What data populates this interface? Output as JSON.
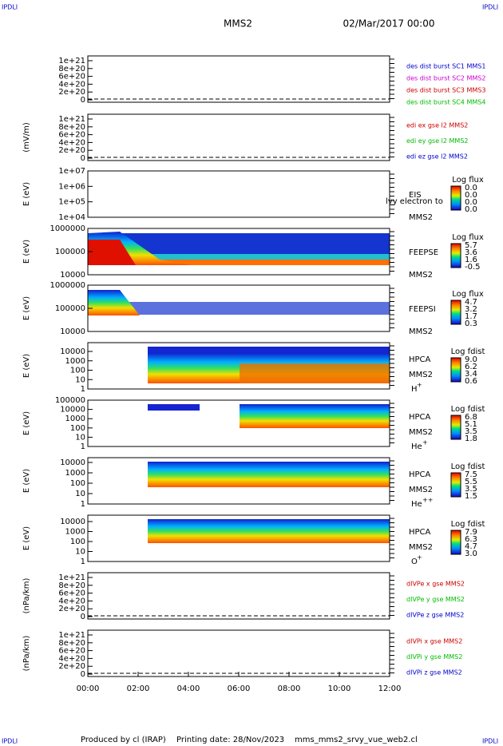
{
  "header": {
    "corner_left": "IPDLI",
    "corner_right": "IPDLI",
    "title": "MMS2",
    "date": "02/Mar/2017 00:00"
  },
  "footer": {
    "corner_left": "IPDLI",
    "corner_right": "IPDLI",
    "credit": "Produced by cl (IRAP)",
    "printing_date": "Printing date: 28/Nov/2023",
    "file": "mms_mms2_srvy_vue_web2.cl"
  },
  "x_axis": {
    "ticks": [
      "00:00",
      "02:00",
      "04:00",
      "06:00",
      "08:00",
      "10:00",
      "12:00"
    ]
  },
  "panels": [
    {
      "yticks": [
        "1e+21",
        "8e+20",
        "6e+20",
        "4e+20",
        "2e+20",
        "0"
      ],
      "legend": [
        {
          "text": "des dist burst SC1 MMS1",
          "color": "#0000cc"
        },
        {
          "text": "des dist burst SC2 MMS2",
          "color": "#cc00cc"
        },
        {
          "text": "des dist burst SC3 MMS3",
          "color": "#cc0000"
        },
        {
          "text": "des dist burst SC4 MMS4",
          "color": "#00bb00"
        }
      ]
    },
    {
      "ylabel": "(mV/m)",
      "yticks": [
        "1e+21",
        "8e+20",
        "6e+20",
        "4e+20",
        "2e+20",
        "0"
      ],
      "legend": [
        {
          "text": "edi ex gse l2 MMS2",
          "color": "#cc0000"
        },
        {
          "text": "edi ey gse l2 MMS2",
          "color": "#00bb00"
        },
        {
          "text": "edi ez gse l2 MMS2",
          "color": "#0000cc"
        }
      ]
    },
    {
      "ylabel": "E (eV)",
      "yticks": [
        "1e+07",
        "1e+06",
        "1e+05",
        "1e+04"
      ],
      "instrument": "EIS",
      "overlay": "lvy electron to",
      "sc": "MMS2",
      "colorbar": {
        "title": "Log flux",
        "ticks": [
          "0.0",
          "0.0",
          "0.0",
          "0.0"
        ]
      }
    },
    {
      "ylabel": "E (eV)",
      "yticks": [
        "1000000",
        "100000",
        "10000"
      ],
      "instrument": "FEEPSE",
      "sc": "MMS2",
      "colorbar": {
        "title": "Log flux",
        "ticks": [
          "5.7",
          "3.6",
          "1.6",
          "-0.5"
        ]
      }
    },
    {
      "ylabel": "E (eV)",
      "yticks": [
        "1000000",
        "100000",
        "10000"
      ],
      "instrument": "FEEPSI",
      "sc": "MMS2",
      "colorbar": {
        "title": "Log flux",
        "ticks": [
          "4.7",
          "3.2",
          "1.7",
          "0.3"
        ]
      }
    },
    {
      "ylabel": "E (eV)",
      "yticks": [
        "10000",
        "1000",
        "100",
        "10",
        "1"
      ],
      "instrument": "HPCA",
      "sc": "MMS2",
      "species": "H",
      "charge": "+",
      "colorbar": {
        "title": "Log fdist",
        "ticks": [
          "9.0",
          "6.2",
          "3.4",
          "0.6"
        ]
      }
    },
    {
      "ylabel": "E (eV)",
      "yticks": [
        "100000",
        "10000",
        "1000",
        "100",
        "10",
        "1"
      ],
      "instrument": "HPCA",
      "sc": "MMS2",
      "species": "He",
      "charge": "+",
      "colorbar": {
        "title": "Log fdist",
        "ticks": [
          "6.8",
          "5.1",
          "3.5",
          "1.8"
        ]
      }
    },
    {
      "ylabel": "E (eV)",
      "yticks": [
        "10000",
        "1000",
        "100",
        "10",
        "1"
      ],
      "instrument": "HPCA",
      "sc": "MMS2",
      "species": "He",
      "charge": "++",
      "colorbar": {
        "title": "Log fdist",
        "ticks": [
          "7.5",
          "5.5",
          "3.5",
          "1.5"
        ]
      }
    },
    {
      "ylabel": "E (eV)",
      "yticks": [
        "10000",
        "1000",
        "100",
        "10",
        "1"
      ],
      "instrument": "HPCA",
      "sc": "MMS2",
      "species": "O",
      "charge": "+",
      "colorbar": {
        "title": "Log fdist",
        "ticks": [
          "7.9",
          "6.3",
          "4.7",
          "3.0"
        ]
      }
    },
    {
      "ylabel": "(nPa/km)",
      "yticks": [
        "1e+21",
        "8e+20",
        "6e+20",
        "4e+20",
        "2e+20",
        "0"
      ],
      "legend": [
        {
          "text": "dIVPe x gse MMS2",
          "color": "#cc0000"
        },
        {
          "text": "dIVPe y gse MMS2",
          "color": "#00bb00"
        },
        {
          "text": "dIVPe z gse MMS2",
          "color": "#0000cc"
        }
      ]
    },
    {
      "ylabel": "(nPa/km)",
      "yticks": [
        "1e+21",
        "8e+20",
        "6e+20",
        "4e+20",
        "2e+20",
        "0"
      ],
      "legend": [
        {
          "text": "dIVPi x gse MMS2",
          "color": "#cc0000"
        },
        {
          "text": "dIVPi y gse MMS2",
          "color": "#00bb00"
        },
        {
          "text": "dIVPi z gse MMS2",
          "color": "#0000cc"
        }
      ]
    }
  ]
}
